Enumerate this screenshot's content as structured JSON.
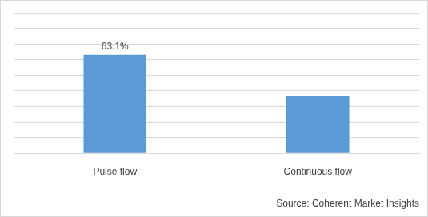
{
  "chart_data": {
    "type": "bar",
    "categories": [
      "Pulse flow",
      "Continuous flow"
    ],
    "values": [
      63.1,
      36.9
    ],
    "value_labels": [
      "63.1%",
      null
    ],
    "data_labels": true,
    "color": "#5b9bd5",
    "ylim": [
      0,
      90
    ],
    "yticks": [
      0,
      10,
      20,
      30,
      40,
      50,
      60,
      70,
      80,
      90
    ],
    "grid": true,
    "tick_labels": "x",
    "source": "Source: Coherent Market Insights"
  }
}
